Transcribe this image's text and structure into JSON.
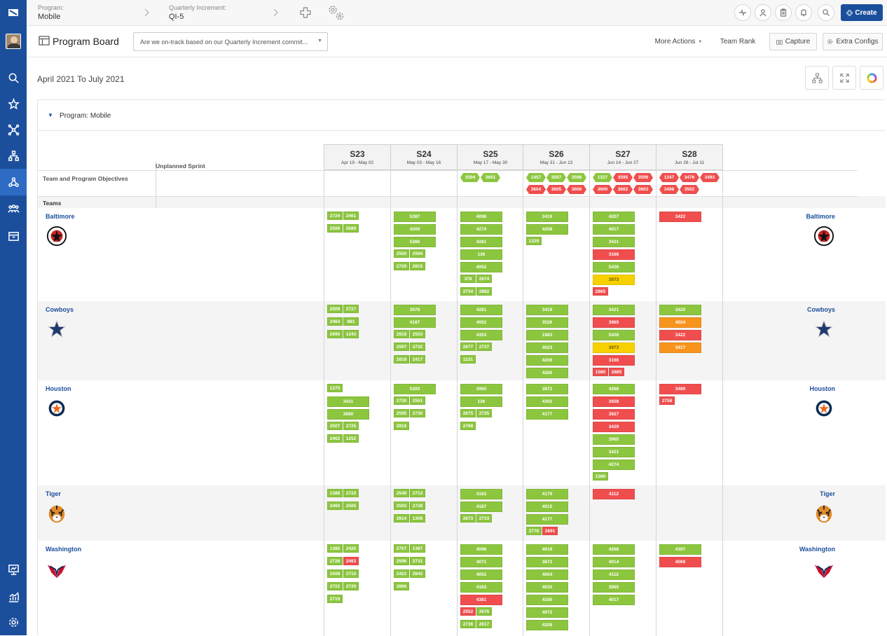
{
  "topbar": {
    "program_label": "Program:",
    "program_value": "Mobile",
    "qi_label": "Quarterly Increment:",
    "qi_value": "QI-5",
    "create_label": "Create"
  },
  "header": {
    "title": "Program Board",
    "question": "Are we on-track based on our Quarterly Increment commit...",
    "more_actions": "More Actions",
    "team_rank": "Team Rank",
    "capture": "Capture",
    "extra_configs": "Extra Configs"
  },
  "board": {
    "date_range": "April 2021 To July 2021",
    "program": "Program: Mobile",
    "unplanned": "Unplanned Sprint",
    "objectives_label": "Team and Program Objectives",
    "teams_label": "Teams",
    "sprints": [
      {
        "name": "S23",
        "dates": "Apr 19 - May 02"
      },
      {
        "name": "S24",
        "dates": "May 03 - May 16"
      },
      {
        "name": "S25",
        "dates": "May 17 - May 30"
      },
      {
        "name": "S26",
        "dates": "May 31 - Jun 13"
      },
      {
        "name": "S27",
        "dates": "Jun 14 - Jun 27"
      },
      {
        "name": "S28",
        "dates": "Jun 28 - Jul 11"
      }
    ],
    "objectives": [
      [],
      [],
      [
        {
          "id": "3594",
          "c": "g"
        },
        {
          "id": "3601",
          "c": "g"
        }
      ],
      [
        {
          "id": "1457",
          "c": "g"
        },
        {
          "id": "3597",
          "c": "g"
        },
        {
          "id": "3598",
          "c": "g"
        },
        {
          "id": "3604",
          "c": "r"
        },
        {
          "id": "3605",
          "c": "r"
        },
        {
          "id": "3606",
          "c": "r"
        }
      ],
      [
        {
          "id": "1327",
          "c": "g"
        },
        {
          "id": "3595",
          "c": "r"
        },
        {
          "id": "3599",
          "c": "r"
        },
        {
          "id": "3600",
          "c": "r"
        },
        {
          "id": "3602",
          "c": "r"
        },
        {
          "id": "3603",
          "c": "r"
        }
      ],
      [
        {
          "id": "1247",
          "c": "r"
        },
        {
          "id": "3476",
          "c": "r"
        },
        {
          "id": "3493",
          "c": "r"
        },
        {
          "id": "3498",
          "c": "r"
        },
        {
          "id": "3502",
          "c": "r"
        }
      ]
    ],
    "teams": [
      {
        "name": "Baltimore",
        "sprints": [
          {
            "small": [
              [
                "2724",
                "g"
              ],
              [
                "2461",
                "g"
              ],
              [
                "2506",
                "g"
              ],
              [
                "2689",
                "g"
              ]
            ]
          },
          {
            "big": [
              [
                "5387",
                "g"
              ],
              [
                "4209",
                "g"
              ],
              [
                "5386",
                "g"
              ]
            ],
            "small": [
              [
                "2550",
                "g"
              ],
              [
                "2594",
                "g"
              ],
              [
                "2729",
                "g"
              ],
              [
                "2815",
                "g"
              ]
            ]
          },
          {
            "big": [
              [
                "4096",
                "g"
              ],
              [
                "4274",
                "g"
              ],
              [
                "4281",
                "g"
              ],
              [
                "136",
                "g"
              ],
              [
                "4052",
                "g"
              ]
            ],
            "small": [
              [
                "378",
                "g"
              ],
              [
                "2674",
                "g"
              ],
              [
                "2734",
                "g"
              ],
              [
                "2882",
                "g"
              ]
            ]
          },
          {
            "big": [
              [
                "3419",
                "g"
              ],
              [
                "4208",
                "g"
              ]
            ],
            "small": [
              [
                "1229",
                "g"
              ]
            ]
          },
          {
            "big": [
              [
                "4207",
                "g"
              ],
              [
                "4017",
                "g"
              ],
              [
                "3421",
                "g"
              ],
              [
                "3166",
                "r"
              ],
              [
                "5426",
                "g"
              ],
              [
                "3973",
                "y"
              ]
            ],
            "small": [
              [
                "2865",
                "r"
              ]
            ]
          },
          {
            "big": [
              [
                "3422",
                "r"
              ]
            ]
          }
        ]
      },
      {
        "name": "Cowboys",
        "sprints": [
          {
            "small": [
              [
                "2509",
                "g"
              ],
              [
                "2727",
                "g"
              ],
              [
                "2464",
                "g"
              ],
              [
                "881",
                "g"
              ],
              [
                "2690",
                "g"
              ],
              [
                "1243",
                "g"
              ]
            ]
          },
          {
            "big": [
              [
                "3978",
                "g"
              ],
              [
                "4187",
                "g"
              ]
            ],
            "small": [
              [
                "2818",
                "g"
              ],
              [
                "2553",
                "g"
              ],
              [
                "2597",
                "g"
              ],
              [
                "2732",
                "g"
              ],
              [
                "2818",
                "g"
              ],
              [
                "2417",
                "g"
              ]
            ]
          },
          {
            "big": [
              [
                "4281",
                "g"
              ],
              [
                "4052",
                "g"
              ],
              [
                "4353",
                "g"
              ]
            ],
            "small": [
              [
                "2677",
                "g"
              ],
              [
                "2737",
                "g"
              ],
              [
                "1231",
                "g"
              ]
            ]
          },
          {
            "big": [
              [
                "3419",
                "g"
              ],
              [
                "3526",
                "g"
              ],
              [
                "1983",
                "g"
              ],
              [
                "4023",
                "g"
              ],
              [
                "4208",
                "g"
              ],
              [
                "4266",
                "g"
              ]
            ]
          },
          {
            "big": [
              [
                "3421",
                "g"
              ],
              [
                "3965",
                "r"
              ],
              [
                "5426",
                "g"
              ],
              [
                "3973",
                "y"
              ],
              [
                "3166",
                "r"
              ]
            ],
            "small": [
              [
                "1080",
                "r"
              ],
              [
                "2885",
                "r"
              ]
            ]
          },
          {
            "big": [
              [
                "3420",
                "g"
              ],
              [
                "4024",
                "o"
              ],
              [
                "3422",
                "r"
              ],
              [
                "3417",
                "o"
              ]
            ]
          }
        ]
      },
      {
        "name": "Houston",
        "sprints": [
          {
            "small": [
              [
                "1270",
                "g"
              ]
            ],
            "big": [
              [
                "3431",
                "g"
              ],
              [
                "3890",
                "g"
              ]
            ],
            "small2": [
              [
                "2507",
                "g"
              ],
              [
                "2725",
                "g"
              ],
              [
                "2462",
                "g"
              ],
              [
                "1252",
                "g"
              ]
            ]
          },
          {
            "big": [
              [
                "5393",
                "g"
              ]
            ],
            "small": [
              [
                "2730",
                "g"
              ],
              [
                "2551",
                "g"
              ],
              [
                "2595",
                "g"
              ],
              [
                "2730",
                "g"
              ],
              [
                "2816",
                "g"
              ]
            ]
          },
          {
            "big": [
              [
                "3960",
                "g"
              ],
              [
                "136",
                "g"
              ]
            ],
            "small": [
              [
                "2675",
                "g"
              ],
              [
                "2735",
                "g"
              ],
              [
                "2768",
                "g"
              ]
            ]
          },
          {
            "big": [
              [
                "3872",
                "g"
              ],
              [
                "4302",
                "g"
              ],
              [
                "4177",
                "g"
              ]
            ]
          },
          {
            "big": [
              [
                "4266",
                "g"
              ],
              [
                "3928",
                "r"
              ],
              [
                "3927",
                "r"
              ],
              [
                "3429",
                "r"
              ],
              [
                "3965",
                "g"
              ],
              [
                "3421",
                "g"
              ],
              [
                "4274",
                "g"
              ]
            ],
            "small": [
              [
                "1386",
                "g"
              ]
            ]
          },
          {
            "big": [
              [
                "3489",
                "r"
              ]
            ],
            "small": [
              [
                "2758",
                "r"
              ]
            ]
          }
        ]
      },
      {
        "name": "Tiger",
        "sprints": [
          {
            "small": [
              [
                "1388",
                "g"
              ],
              [
                "2723",
                "g"
              ],
              [
                "2460",
                "g"
              ],
              [
                "2505",
                "g"
              ]
            ]
          },
          {
            "small": [
              [
                "2549",
                "g"
              ],
              [
                "2713",
                "g"
              ],
              [
                "2593",
                "g"
              ],
              [
                "2728",
                "g"
              ],
              [
                "2814",
                "g"
              ],
              [
                "1308",
                "g"
              ]
            ]
          },
          {
            "big": [
              [
                "4183",
                "g"
              ],
              [
                "4187",
                "g"
              ]
            ],
            "small": [
              [
                "2673",
                "g"
              ],
              [
                "2733",
                "g"
              ]
            ]
          },
          {
            "big": [
              [
                "4179",
                "g"
              ],
              [
                "4015",
                "g"
              ],
              [
                "4177",
                "g"
              ]
            ],
            "small": [
              [
                "2776",
                "g"
              ],
              [
                "2691",
                "r"
              ]
            ]
          },
          {
            "big": [
              [
                "4112",
                "r"
              ]
            ]
          },
          {}
        ]
      },
      {
        "name": "Washington",
        "sprints": [
          {
            "small": [
              [
                "1385",
                "g"
              ],
              [
                "2420",
                "g"
              ],
              [
                "2726",
                "g"
              ],
              [
                "2463",
                "r"
              ],
              [
                "2508",
                "g"
              ],
              [
                "2710",
                "g"
              ],
              [
                "2722",
                "g"
              ],
              [
                "2720",
                "g"
              ],
              [
                "2719",
                "g"
              ]
            ]
          },
          {
            "small": [
              [
                "2757",
                "g"
              ],
              [
                "1387",
                "g"
              ],
              [
                "2596",
                "g"
              ],
              [
                "2731",
                "g"
              ],
              [
                "2422",
                "g"
              ],
              [
                "2843",
                "g"
              ],
              [
                "2866",
                "g"
              ]
            ]
          },
          {
            "big": [
              [
                "4096",
                "g"
              ],
              [
                "4071",
                "g"
              ],
              [
                "4052",
                "g"
              ],
              [
                "4183",
                "g"
              ],
              [
                "4381",
                "r"
              ]
            ],
            "small": [
              [
                "2552",
                "r"
              ],
              [
                "2676",
                "g"
              ],
              [
                "2736",
                "g"
              ],
              [
                "2817",
                "g"
              ]
            ]
          },
          {
            "big": [
              [
                "4019",
                "g"
              ],
              [
                "3872",
                "g"
              ],
              [
                "4054",
                "g"
              ],
              [
                "4033",
                "g"
              ],
              [
                "4180",
                "g"
              ],
              [
                "4072",
                "g"
              ],
              [
                "4208",
                "g"
              ]
            ]
          },
          {
            "big": [
              [
                "4266",
                "g"
              ],
              [
                "4014",
                "g"
              ],
              [
                "4112",
                "g"
              ],
              [
                "3965",
                "g"
              ],
              [
                "4017",
                "g"
              ]
            ]
          },
          {
            "big": [
              [
                "4307",
                "g"
              ],
              [
                "4069",
                "r"
              ]
            ]
          }
        ]
      }
    ]
  }
}
